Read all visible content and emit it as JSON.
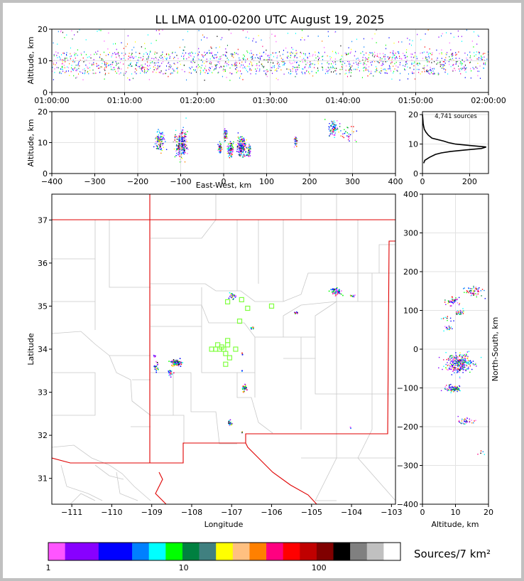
{
  "title": "LL LMA 0100-0200 UTC August 19, 2025",
  "chart_data": [
    {
      "id": "time_altitude",
      "type": "scatter",
      "ylabel": "Altitude, km",
      "xlim": [
        "01:00:00",
        "02:00:00"
      ],
      "ylim": [
        0,
        20
      ],
      "x_ticks": [
        "01:00:00",
        "01:10:00",
        "01:20:00",
        "01:30:00",
        "01:40:00",
        "01:50:00",
        "02:00:00"
      ],
      "y_ticks": [
        0,
        10,
        20
      ],
      "altitude_band_km": [
        4,
        20
      ],
      "dense_core_km": [
        6,
        13
      ]
    },
    {
      "id": "ew_altitude",
      "type": "scatter",
      "xlabel": "East-West, km",
      "ylabel": "Altitude, km",
      "xlim": [
        -400,
        400
      ],
      "ylim": [
        0,
        20
      ],
      "x_ticks": [
        -400,
        -300,
        -200,
        -100,
        0,
        100,
        200,
        300,
        400
      ],
      "y_ticks": [
        0,
        10,
        20
      ],
      "clusters": [
        {
          "x": -150,
          "alt": 10.5,
          "dx": 10,
          "dalt": 3,
          "n": 120
        },
        {
          "x": -100,
          "alt": 9.5,
          "dx": 12,
          "dalt": 4,
          "n": 320
        },
        {
          "x": -10,
          "alt": 8.5,
          "dx": 4,
          "dalt": 1.5,
          "n": 40
        },
        {
          "x": 3,
          "alt": 13,
          "dx": 4,
          "dalt": 2,
          "n": 50
        },
        {
          "x": 15,
          "alt": 8,
          "dx": 7,
          "dalt": 2,
          "n": 100
        },
        {
          "x": 40,
          "alt": 9,
          "dx": 10,
          "dalt": 3,
          "n": 240
        },
        {
          "x": 58,
          "alt": 7.5,
          "dx": 4,
          "dalt": 2,
          "n": 60
        },
        {
          "x": 167,
          "alt": 10.5,
          "dx": 3,
          "dalt": 2,
          "n": 60
        },
        {
          "x": 255,
          "alt": 15,
          "dx": 12,
          "dalt": 2.5,
          "n": 80
        },
        {
          "x": 290,
          "alt": 13,
          "dx": 20,
          "dalt": 3,
          "n": 30
        }
      ]
    },
    {
      "id": "altitude_histogram",
      "type": "line",
      "annotation": "4,741 sources",
      "xlim": [
        0,
        280
      ],
      "ylim": [
        0,
        21
      ],
      "x_ticks": [
        0,
        200
      ],
      "y_ticks": [
        0,
        10,
        20
      ],
      "altitude_km": [
        3.5,
        4.5,
        5.5,
        6.5,
        7,
        7.5,
        8,
        8.5,
        9,
        9.5,
        10,
        10.5,
        11,
        12,
        13,
        14,
        15,
        16,
        17,
        18,
        20
      ],
      "count": [
        5,
        10,
        30,
        55,
        80,
        120,
        180,
        250,
        270,
        200,
        140,
        110,
        90,
        40,
        25,
        15,
        8,
        5,
        3,
        2,
        0
      ]
    },
    {
      "id": "plan_view",
      "type": "scatter",
      "xlabel": "Longitude",
      "ylabel": "Latitude",
      "xlim": [
        -111.5,
        -102.9
      ],
      "ylim": [
        30.4,
        37.6
      ],
      "x_ticks": [
        -111,
        -110,
        -109,
        -108,
        -107,
        -106,
        -105,
        -104,
        -103
      ],
      "y_ticks": [
        31,
        32,
        33,
        34,
        35,
        36,
        37
      ],
      "clusters": [
        {
          "lon": -108.4,
          "lat": 33.7,
          "dlon": 0.12,
          "dlat": 0.07,
          "n": 90
        },
        {
          "lon": -108.9,
          "lat": 33.6,
          "dlon": 0.1,
          "dlat": 0.1,
          "n": 20
        },
        {
          "lon": -108.55,
          "lat": 33.45,
          "dlon": 0.05,
          "dlat": 0.08,
          "n": 25
        },
        {
          "lon": -108.95,
          "lat": 33.85,
          "dlon": 0.03,
          "dlat": 0.05,
          "n": 10
        },
        {
          "lon": -107.0,
          "lat": 35.25,
          "dlon": 0.12,
          "dlat": 0.08,
          "n": 25
        },
        {
          "lon": -104.4,
          "lat": 35.35,
          "dlon": 0.15,
          "dlat": 0.07,
          "n": 60
        },
        {
          "lon": -104.0,
          "lat": 35.25,
          "dlon": 0.1,
          "dlat": 0.03,
          "n": 15
        },
        {
          "lon": -105.4,
          "lat": 34.85,
          "dlon": 0.04,
          "dlat": 0.03,
          "n": 10
        },
        {
          "lon": -106.5,
          "lat": 34.5,
          "dlon": 0.04,
          "dlat": 0.03,
          "n": 8
        },
        {
          "lon": -106.7,
          "lat": 33.1,
          "dlon": 0.06,
          "dlat": 0.08,
          "n": 30
        },
        {
          "lon": -107.05,
          "lat": 32.3,
          "dlon": 0.05,
          "dlat": 0.06,
          "n": 20
        },
        {
          "lon": -106.75,
          "lat": 32.08,
          "dlon": 0.02,
          "dlat": 0.02,
          "n": 4
        },
        {
          "lon": -106.75,
          "lat": 33.5,
          "dlon": 0.01,
          "dlat": 0.02,
          "n": 4
        },
        {
          "lon": -106.75,
          "lat": 33.9,
          "dlon": 0.02,
          "dlat": 0.02,
          "n": 4
        },
        {
          "lon": -104.05,
          "lat": 32.2,
          "dlon": 0.02,
          "dlat": 0.03,
          "n": 3
        }
      ],
      "stations": [
        [
          -107.35,
          34.1
        ],
        [
          -107.5,
          34.0
        ],
        [
          -107.2,
          34.0
        ],
        [
          -107.1,
          34.1
        ],
        [
          -107.15,
          33.9
        ],
        [
          -107.05,
          33.8
        ],
        [
          -107.15,
          33.65
        ],
        [
          -107.1,
          34.2
        ],
        [
          -106.9,
          34.0
        ],
        [
          -107.3,
          34.0
        ],
        [
          -107.4,
          34.0
        ],
        [
          -106.8,
          34.65
        ],
        [
          -106.6,
          34.95
        ],
        [
          -106.0,
          35.0
        ],
        [
          -106.75,
          35.15
        ],
        [
          -107.1,
          35.1
        ],
        [
          -107.25,
          34.05
        ]
      ],
      "station_color": "#80ff40",
      "boundary_color": "#e00000"
    },
    {
      "id": "altitude_ns",
      "type": "scatter",
      "xlabel": "Altitude, km",
      "ylabel": "North-South, km",
      "xlim": [
        0,
        20
      ],
      "ylim": [
        -400,
        400
      ],
      "x_ticks": [
        0,
        10,
        20
      ],
      "y_ticks": [
        -400,
        -300,
        -200,
        -100,
        0,
        100,
        200,
        300,
        400
      ],
      "clusters": [
        {
          "alt": 11,
          "ns": -35,
          "dalt": 4,
          "dns": 25,
          "n": 320
        },
        {
          "alt": 9,
          "ns": -100,
          "dalt": 3,
          "dns": 8,
          "n": 90
        },
        {
          "alt": 13,
          "ns": -185,
          "dalt": 2,
          "dns": 8,
          "n": 40
        },
        {
          "alt": 9,
          "ns": 125,
          "dalt": 2,
          "dns": 10,
          "n": 50
        },
        {
          "alt": 11,
          "ns": 95,
          "dalt": 1.5,
          "dns": 8,
          "n": 30
        },
        {
          "alt": 15,
          "ns": 150,
          "dalt": 3,
          "dns": 12,
          "n": 60
        },
        {
          "alt": 8,
          "ns": 55,
          "dalt": 1.5,
          "dns": 5,
          "n": 20
        },
        {
          "alt": 7,
          "ns": 80,
          "dalt": 2,
          "dns": 5,
          "n": 10
        },
        {
          "alt": 18,
          "ns": -265,
          "dalt": 1,
          "dns": 10,
          "n": 5
        }
      ]
    },
    {
      "id": "density_colorbar",
      "type": "colorbar",
      "label": "Sources/7 km²",
      "scale": "log",
      "range": [
        1,
        400
      ],
      "tick_labels": [
        "1",
        "10",
        "100"
      ],
      "colors": [
        "#ff55ff",
        "#8800ff",
        "#8800ff",
        "#0000ff",
        "#0000ff",
        "#0080ff",
        "#00ffff",
        "#00ff00",
        "#008040",
        "#408080",
        "#ffff00",
        "#ffc080",
        "#ff8000",
        "#ff0080",
        "#ff0000",
        "#c00000",
        "#800000",
        "#000000",
        "#808080",
        "#c0c0c0",
        "#ffffff"
      ]
    }
  ]
}
